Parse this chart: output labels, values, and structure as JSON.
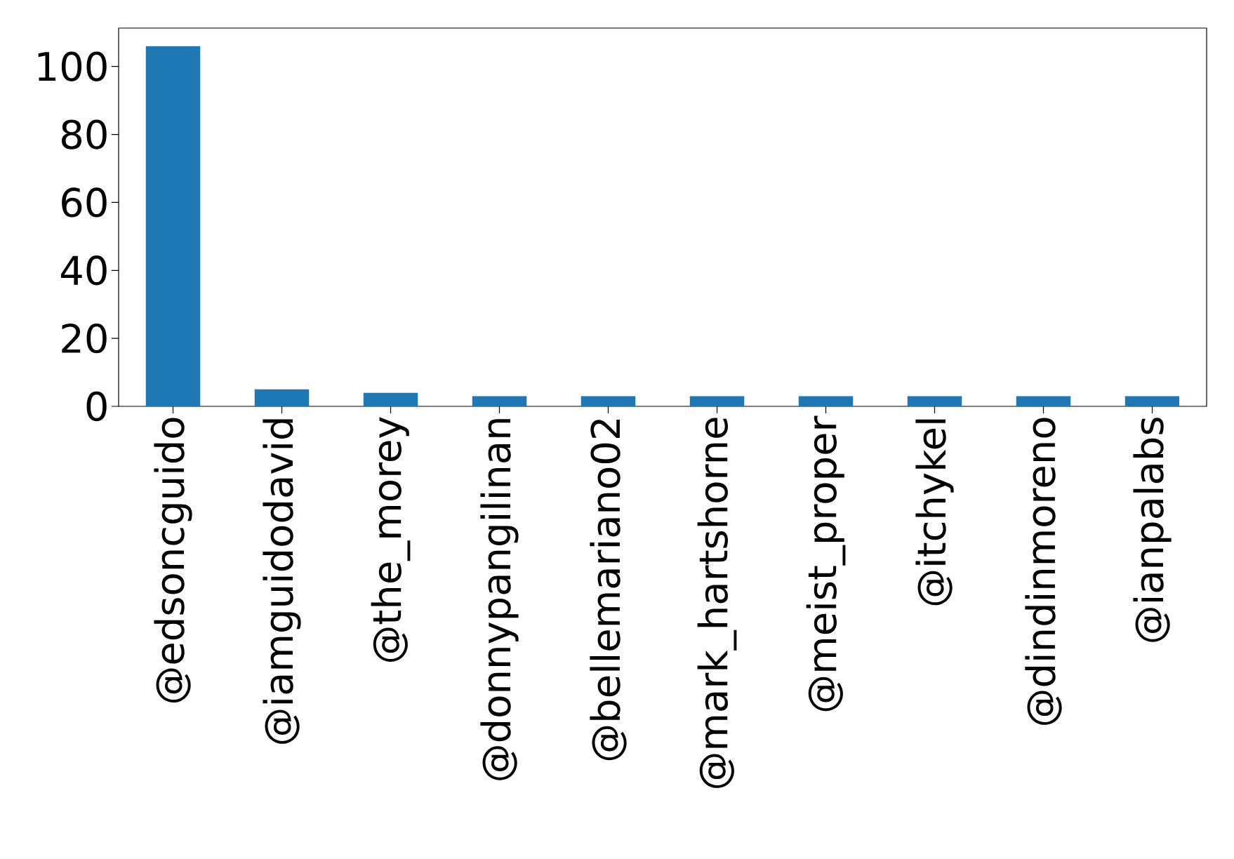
{
  "chart_data": {
    "type": "bar",
    "categories": [
      "@edsoncguido",
      "@iamguidodavid",
      "@the_morey",
      "@donnypangilinan",
      "@bellemariano02",
      "@mark_hartshorne",
      "@meist_proper",
      "@itchykel",
      "@dindinmoreno",
      "@ianpalabs"
    ],
    "values": [
      106,
      5,
      4,
      3,
      3,
      3,
      3,
      3,
      3,
      3
    ],
    "color": "#1f77b4",
    "ylim": [
      0,
      111.3
    ],
    "yticks": [
      0,
      20,
      40,
      60,
      80,
      100
    ]
  }
}
